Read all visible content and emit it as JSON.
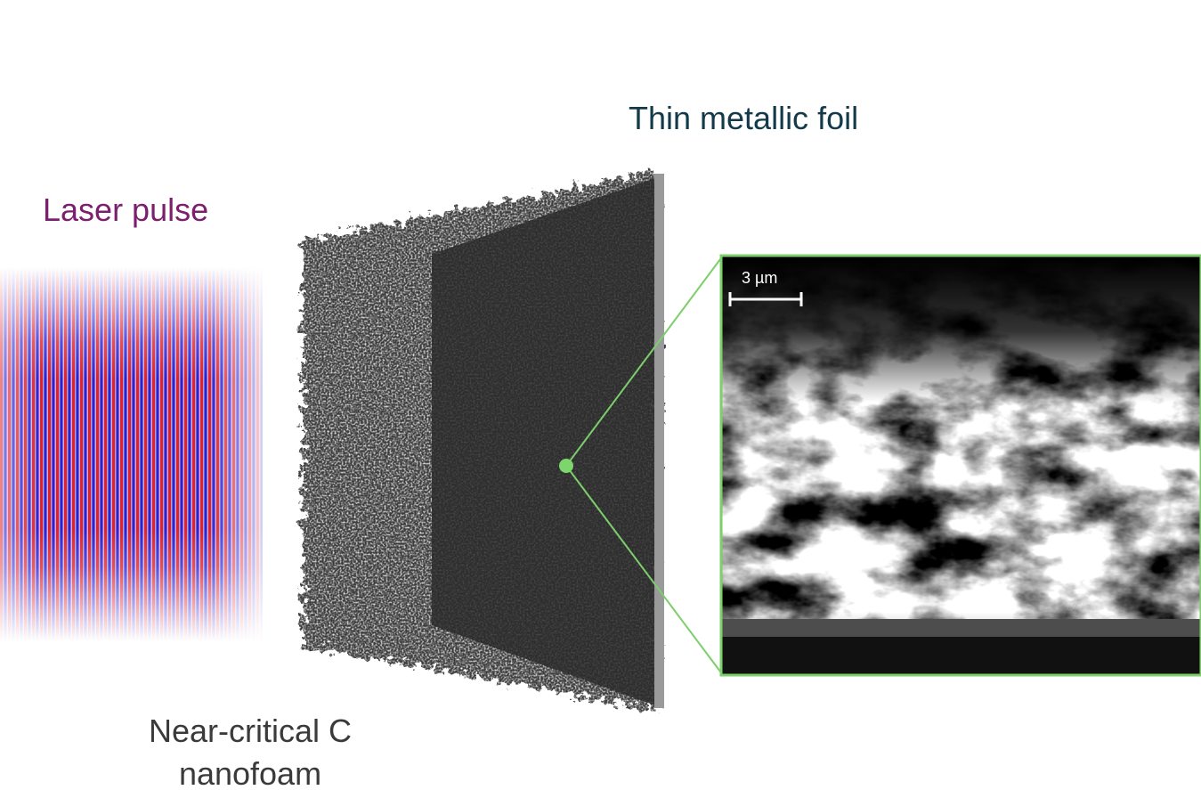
{
  "labels": {
    "laser": "Laser pulse",
    "foil": "Thin metallic foil",
    "foam": [
      "Near-critical C",
      "nanofoam"
    ],
    "scale_bar": "3 µm"
  }
}
